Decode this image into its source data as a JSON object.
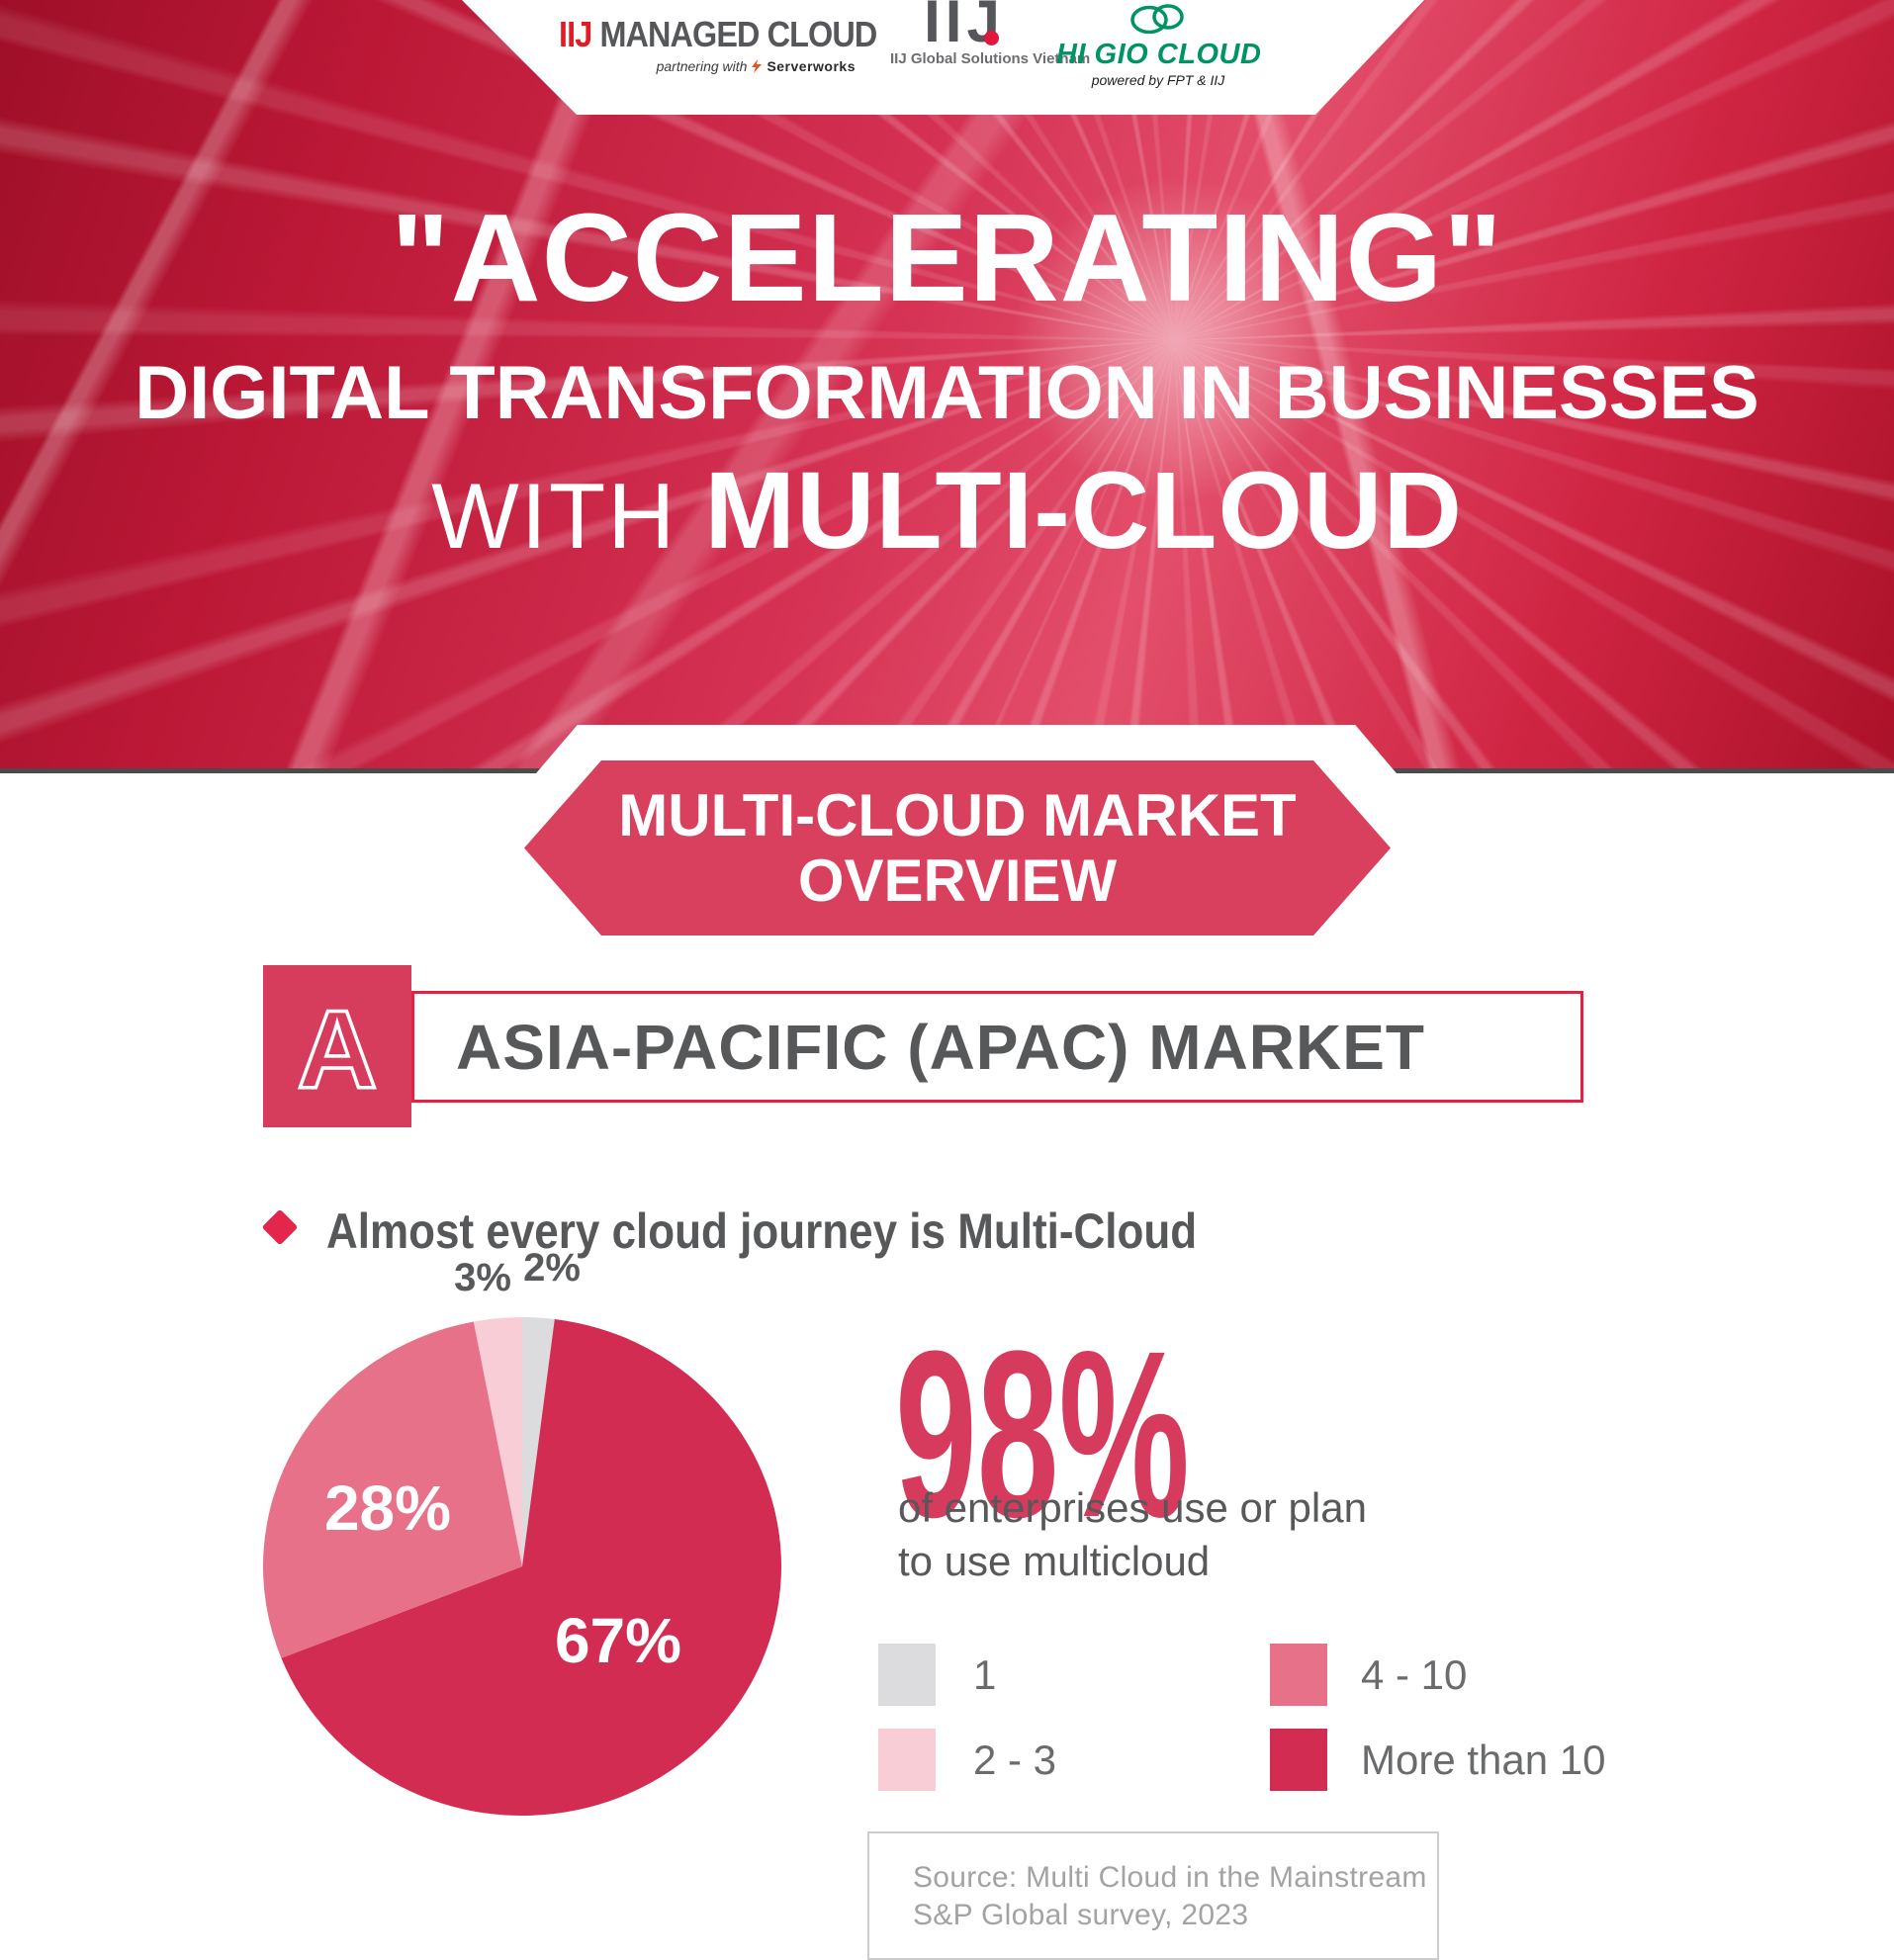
{
  "logos": {
    "managed_cloud": {
      "brand": "IIJ",
      "name": "MANAGED CLOUD",
      "tagline_prefix": "partnering with",
      "partner": "Serverworks"
    },
    "global_vn": {
      "monogram": "IIJ",
      "caption": "IIJ Global Solutions Vietnam"
    },
    "higio": {
      "name": "HI GIO CLOUD",
      "tagline": "powered by FPT & IIJ"
    }
  },
  "hero": {
    "line1": "\"ACCELERATING\"",
    "line2": "DIGITAL TRANSFORMATION IN BUSINESSES",
    "line3_prefix": "WITH ",
    "line3_emphasis": "MULTI-CLOUD"
  },
  "banner": {
    "line1": "MULTI-CLOUD MARKET",
    "line2": "OVERVIEW"
  },
  "section_a": {
    "badge": "A",
    "title": "ASIA-PACIFIC (APAC) MARKET"
  },
  "bullet": {
    "text": "Almost every cloud journey is Multi-Cloud"
  },
  "stat": {
    "value": "98%",
    "desc_line1": "of enterprises use or plan",
    "desc_line2": "to use multicloud"
  },
  "source": {
    "line1": "Source: Multi Cloud in the Mainstream",
    "line2": "S&P Global survey, 2023"
  },
  "icons": {
    "higio_cloud": "cloud-outline",
    "serverworks_bolt": "lightning-bolt",
    "bullet_marker": "diamond",
    "iij_dot": "red-dot"
  },
  "colors": {
    "brand_red": "#d63b5e",
    "banner_red": "#d8405e",
    "accent_border_red": "#e62045",
    "dark_text": "#57585a",
    "legend_text": "#6a6b6d",
    "source_text": "#a2a3a5",
    "higio_green": "#009365"
  },
  "chart_data": {
    "type": "pie",
    "labels": [
      "1",
      "2 - 3",
      "4 - 10",
      "More than 10"
    ],
    "values": [
      2,
      3,
      28,
      67
    ],
    "colors": [
      "#dcdcde",
      "#f8cdd6",
      "#e8718a",
      "#d22c52"
    ],
    "data_labels": [
      "2%",
      "3%",
      "28%",
      "67%"
    ],
    "draw_order_clockwise_from_top": [
      0,
      3,
      2,
      1
    ],
    "start_angle_deg": 0,
    "direction": "clockwise",
    "legend_position": "right",
    "callout_value": "98%",
    "callout_text": "of enterprises use or plan to use multicloud"
  }
}
